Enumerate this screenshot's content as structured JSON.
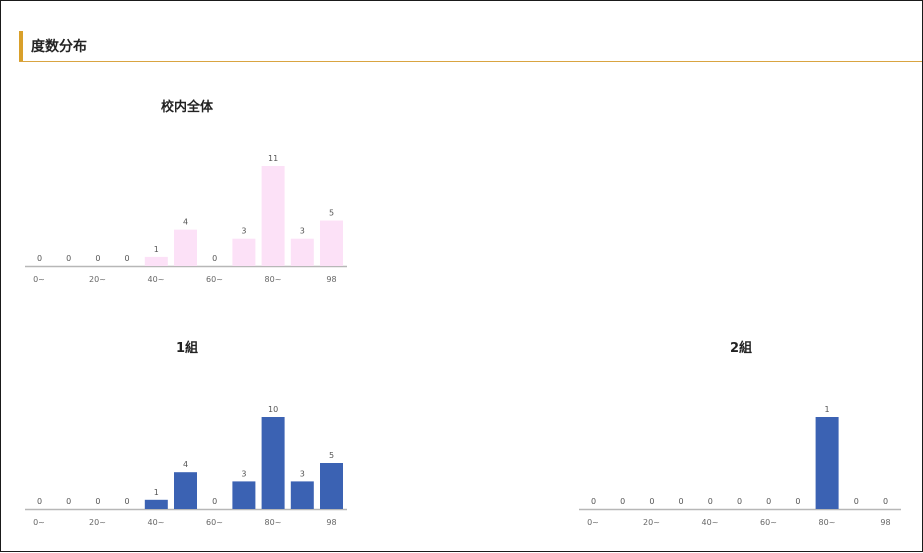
{
  "section": {
    "title": "度数分布",
    "accent_color": "#d9a02a"
  },
  "chart_data": [
    {
      "type": "bar",
      "title": "校内全体",
      "color": "#fce1f7",
      "ticks": [
        "0~",
        "20~",
        "40~",
        "60~",
        "80~",
        "98"
      ],
      "values": [
        0,
        0,
        0,
        0,
        1,
        4,
        0,
        3,
        11,
        3,
        5
      ]
    },
    {
      "type": "bar",
      "title": "1組",
      "color": "#3b62b3",
      "ticks": [
        "0~",
        "20~",
        "40~",
        "60~",
        "80~",
        "98"
      ],
      "values": [
        0,
        0,
        0,
        0,
        1,
        4,
        0,
        3,
        10,
        3,
        5
      ]
    },
    {
      "type": "bar",
      "title": "2組",
      "color": "#3b62b3",
      "ticks": [
        "0~",
        "20~",
        "40~",
        "60~",
        "80~",
        "98"
      ],
      "values": [
        0,
        0,
        0,
        0,
        0,
        0,
        0,
        0,
        1,
        0,
        0
      ]
    }
  ]
}
